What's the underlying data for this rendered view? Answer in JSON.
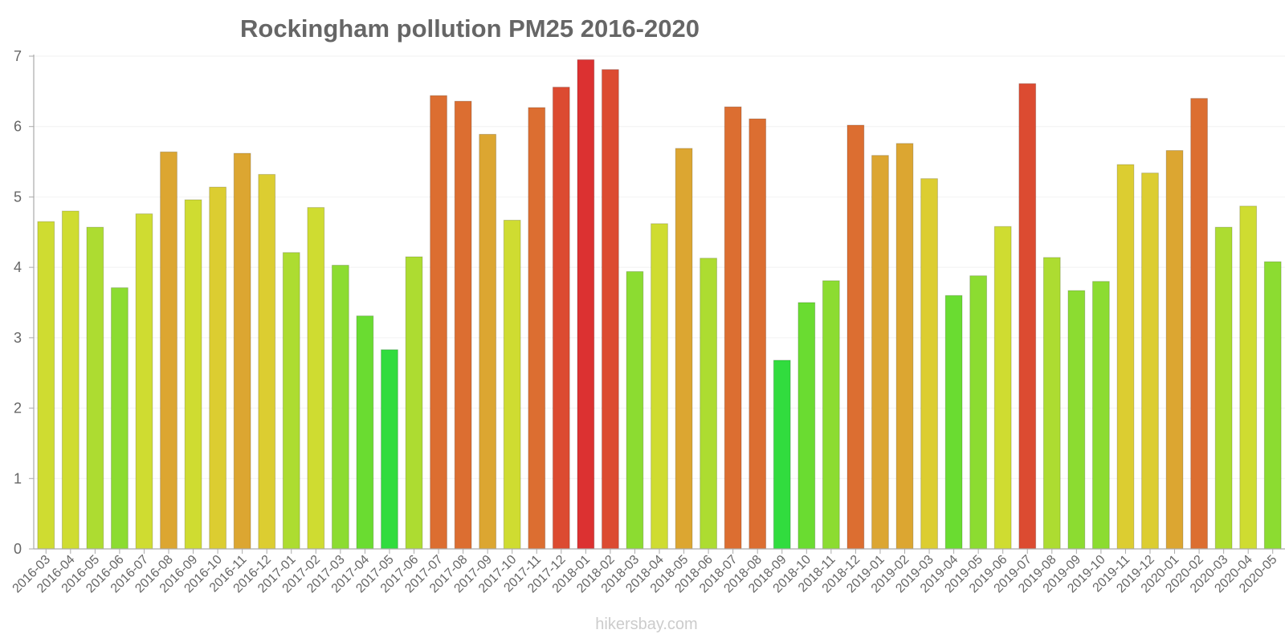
{
  "chart_data": {
    "type": "bar",
    "title": "Rockingham pollution PM25 2016-2020",
    "xlabel": "",
    "ylabel": "",
    "ylim": [
      0,
      7
    ],
    "yticks": [
      "0",
      "1",
      "2",
      "3",
      "4",
      "5",
      "6",
      "7"
    ],
    "grid": true,
    "categories": [
      "2016-03",
      "2016-04",
      "2016-05",
      "2016-06",
      "2016-07",
      "2016-08",
      "2016-09",
      "2016-10",
      "2016-11",
      "2016-12",
      "2017-01",
      "2017-02",
      "2017-03",
      "2017-04",
      "2017-05",
      "2017-06",
      "2017-07",
      "2017-08",
      "2017-09",
      "2017-10",
      "2017-11",
      "2017-12",
      "2018-01",
      "2018-02",
      "2018-03",
      "2018-04",
      "2018-05",
      "2018-06",
      "2018-07",
      "2018-08",
      "2018-09",
      "2018-10",
      "2018-11",
      "2018-12",
      "2019-01",
      "2019-02",
      "2019-03",
      "2019-04",
      "2019-05",
      "2019-06",
      "2019-07",
      "2019-08",
      "2019-09",
      "2019-10",
      "2019-11",
      "2019-12",
      "2020-01",
      "2020-02",
      "2020-03",
      "2020-04",
      "2020-05"
    ],
    "values": [
      4.65,
      4.8,
      4.57,
      3.71,
      4.76,
      5.64,
      4.96,
      5.14,
      5.62,
      5.32,
      4.21,
      4.85,
      4.03,
      3.31,
      2.83,
      4.15,
      6.44,
      6.36,
      5.89,
      4.67,
      6.27,
      6.56,
      6.95,
      6.81,
      3.94,
      4.62,
      5.69,
      4.13,
      6.28,
      6.11,
      2.68,
      3.5,
      3.81,
      6.02,
      5.59,
      5.76,
      5.26,
      3.6,
      3.88,
      4.58,
      6.61,
      4.14,
      3.67,
      3.8,
      5.46,
      5.34,
      5.66,
      6.4,
      4.57,
      4.87,
      4.08
    ],
    "colors": [
      "#cfdc31",
      "#cfdc31",
      "#addc31",
      "#8cdc31",
      "#cfdc31",
      "#dca631",
      "#cfdc31",
      "#dccd31",
      "#dca631",
      "#dccd31",
      "#addc31",
      "#cfdc31",
      "#8cdc31",
      "#6adc31",
      "#31dc3e",
      "#addc31",
      "#dc6e31",
      "#dc6e31",
      "#dca631",
      "#cfdc31",
      "#dc6e31",
      "#dc4b31",
      "#dc3131",
      "#dc4b31",
      "#8cdc31",
      "#cfdc31",
      "#dca631",
      "#addc31",
      "#dc6e31",
      "#dc6e31",
      "#31dc3e",
      "#6adc31",
      "#8cdc31",
      "#dc6e31",
      "#dca631",
      "#dca631",
      "#dccd31",
      "#6adc31",
      "#8cdc31",
      "#cfdc31",
      "#dc4b31",
      "#addc31",
      "#8cdc31",
      "#8cdc31",
      "#dccd31",
      "#dccd31",
      "#dca631",
      "#dc6e31",
      "#addc31",
      "#cfdc31",
      "#8cdc31"
    ]
  },
  "footer": {
    "source": "hikersbay.com"
  }
}
